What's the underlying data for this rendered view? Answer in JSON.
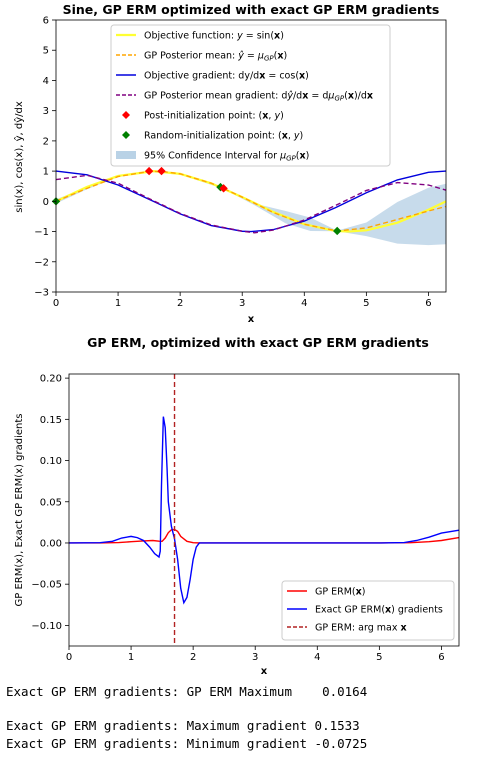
{
  "chart_data": [
    {
      "type": "line",
      "title": "Sine, GP ERM optimized with exact GP ERM gradients",
      "xlabel": "x",
      "ylabel": "sin(x), cos(x), ŷ, dŷ/dx",
      "xlim": [
        0,
        6.283
      ],
      "ylim": [
        -3,
        6
      ],
      "xticks": [
        0,
        1,
        2,
        3,
        4,
        5,
        6
      ],
      "yticks": [
        -3,
        -2,
        -1,
        0,
        1,
        2,
        3,
        4,
        5,
        6
      ],
      "grid": false,
      "legend_position": "upper center",
      "series": [
        {
          "name": "Objective function: y = sin(x)",
          "color": "#ffff33",
          "style": "solid",
          "x": [
            0,
            0.5,
            1,
            1.5708,
            2,
            2.5,
            3,
            3.5,
            4,
            4.5,
            4.7124,
            5,
            5.5,
            6,
            6.283
          ],
          "y": [
            0,
            0.479,
            0.841,
            1.0,
            0.909,
            0.598,
            0.141,
            -0.351,
            -0.757,
            -0.978,
            -1.0,
            -0.959,
            -0.706,
            -0.279,
            0
          ]
        },
        {
          "name": "GP Posterior mean: ŷ = μGP(x)",
          "color": "#ffa500",
          "style": "dashed",
          "x": [
            0,
            0.5,
            1,
            1.5,
            1.7,
            2,
            2.5,
            2.66,
            3,
            3.5,
            4,
            4.53,
            5,
            5.5,
            6,
            6.283
          ],
          "y": [
            0,
            0.43,
            0.82,
            0.99,
            0.99,
            0.91,
            0.6,
            0.46,
            0.14,
            -0.37,
            -0.76,
            -0.98,
            -0.88,
            -0.6,
            -0.32,
            -0.17
          ]
        },
        {
          "name": "Objective gradient: dy/dx = cos(x)",
          "color": "#0000dd",
          "style": "solid",
          "x": [
            0,
            0.5,
            1,
            1.5708,
            2,
            2.5,
            3,
            3.1416,
            3.5,
            4,
            4.5,
            5,
            5.5,
            6,
            6.283
          ],
          "y": [
            1,
            0.878,
            0.54,
            0,
            -0.416,
            -0.801,
            -0.99,
            -1,
            -0.936,
            -0.654,
            -0.211,
            0.284,
            0.709,
            0.96,
            1
          ]
        },
        {
          "name": "GP Posterior mean gradient: dŷ/dx = dμGP(x)/dx",
          "color": "#800080",
          "style": "dashed",
          "x": [
            0,
            0.5,
            1,
            1.5,
            2,
            2.5,
            3,
            3.2,
            3.5,
            4,
            4.5,
            5,
            5.5,
            6,
            6.283
          ],
          "y": [
            0.72,
            0.86,
            0.6,
            0.09,
            -0.4,
            -0.78,
            -0.99,
            -1.04,
            -0.95,
            -0.62,
            -0.14,
            0.36,
            0.62,
            0.54,
            0.37
          ]
        }
      ],
      "post_initialization_points": {
        "name": "Post-initialization point: (x, y)",
        "color": "#ff0000",
        "x": [
          1.5,
          1.7,
          2.7
        ],
        "y": [
          1.0,
          1.0,
          0.43
        ]
      },
      "random_initialization_points": {
        "name": "Random-initialization point: (x, y)",
        "color": "#008000",
        "x": [
          0,
          2.65,
          4.53
        ],
        "y": [
          0,
          0.47,
          -0.98
        ]
      },
      "confidence_interval": {
        "name": "95% Confidence Interval for μGP(x)",
        "color": "#b9d2e6",
        "x": [
          0,
          0.5,
          1,
          1.5,
          2,
          2.7,
          3.2,
          3.7,
          4.1,
          4.53,
          5.0,
          5.5,
          6.0,
          6.283
        ],
        "lower": [
          -0.07,
          0.4,
          0.8,
          0.97,
          0.89,
          0.41,
          -0.13,
          -0.73,
          -0.98,
          -0.99,
          -1.15,
          -1.4,
          -1.45,
          -1.42
        ],
        "upper": [
          0.07,
          0.46,
          0.84,
          1.01,
          0.93,
          0.45,
          -0.07,
          -0.32,
          -0.54,
          -0.97,
          -0.7,
          -0.02,
          0.45,
          0.58
        ]
      }
    },
    {
      "type": "line",
      "title": "GP ERM, optimized with exact GP ERM gradients",
      "xlabel": "x",
      "ylabel": "GP ERM(x), Exact GP ERM(x) gradients",
      "xlim": [
        0,
        6.283
      ],
      "ylim": [
        -0.125,
        0.205
      ],
      "xticks": [
        0,
        1,
        2,
        3,
        4,
        5,
        6
      ],
      "yticks": [
        -0.1,
        -0.05,
        0.0,
        0.05,
        0.1,
        0.15,
        0.2
      ],
      "ytick_labels": [
        "−0.10",
        "−0.05",
        "0.00",
        "0.05",
        "0.10",
        "0.15",
        "0.20"
      ],
      "grid": false,
      "legend_position": "lower right",
      "series": [
        {
          "name": "GP ERM(x)",
          "color": "#ff0000",
          "style": "solid",
          "x": [
            0,
            0.5,
            0.8,
            1.0,
            1.2,
            1.35,
            1.45,
            1.5,
            1.55,
            1.6,
            1.65,
            1.7,
            1.75,
            1.8,
            1.9,
            2.0,
            2.1,
            2.5,
            3,
            4,
            5,
            5.5,
            5.8,
            6.0,
            6.283
          ],
          "y": [
            0,
            0,
            0.0005,
            0.0015,
            0.0025,
            0.003,
            0.0022,
            0.002,
            0.006,
            0.0125,
            0.016,
            0.0164,
            0.014,
            0.008,
            0.002,
            0.0003,
            0,
            0,
            0,
            0,
            0,
            0.0003,
            0.0015,
            0.003,
            0.0065
          ]
        },
        {
          "name": "Exact GP ERM(x) gradients",
          "color": "#0000ff",
          "style": "solid",
          "x": [
            0,
            0.5,
            0.7,
            0.85,
            1.0,
            1.1,
            1.2,
            1.3,
            1.38,
            1.45,
            1.47,
            1.49,
            1.52,
            1.55,
            1.58,
            1.6,
            1.65,
            1.7,
            1.75,
            1.8,
            1.85,
            1.9,
            1.95,
            2.0,
            2.05,
            2.1,
            2.3,
            3,
            4,
            5,
            5.4,
            5.6,
            5.8,
            6.0,
            6.283
          ],
          "y": [
            0,
            0.0003,
            0.002,
            0.006,
            0.008,
            0.0065,
            0.003,
            -0.005,
            -0.013,
            -0.017,
            -0.01,
            0.07,
            0.1533,
            0.14,
            0.09,
            0.05,
            0.02,
            0.005,
            -0.02,
            -0.055,
            -0.0725,
            -0.066,
            -0.045,
            -0.02,
            -0.005,
            0,
            0,
            0,
            0,
            0,
            0.0005,
            0.003,
            0.007,
            0.012,
            0.0155
          ]
        }
      ],
      "argmax_line": {
        "name": "GP ERM: arg max x",
        "color": "#b22222",
        "x": 1.7
      }
    }
  ],
  "console": {
    "line1": "Exact GP ERM gradients: GP ERM Maximum    0.0164",
    "line2": "Exact GP ERM gradients: Maximum gradient 0.1533",
    "line3": "Exact GP ERM gradients: Minimum gradient -0.0725"
  }
}
